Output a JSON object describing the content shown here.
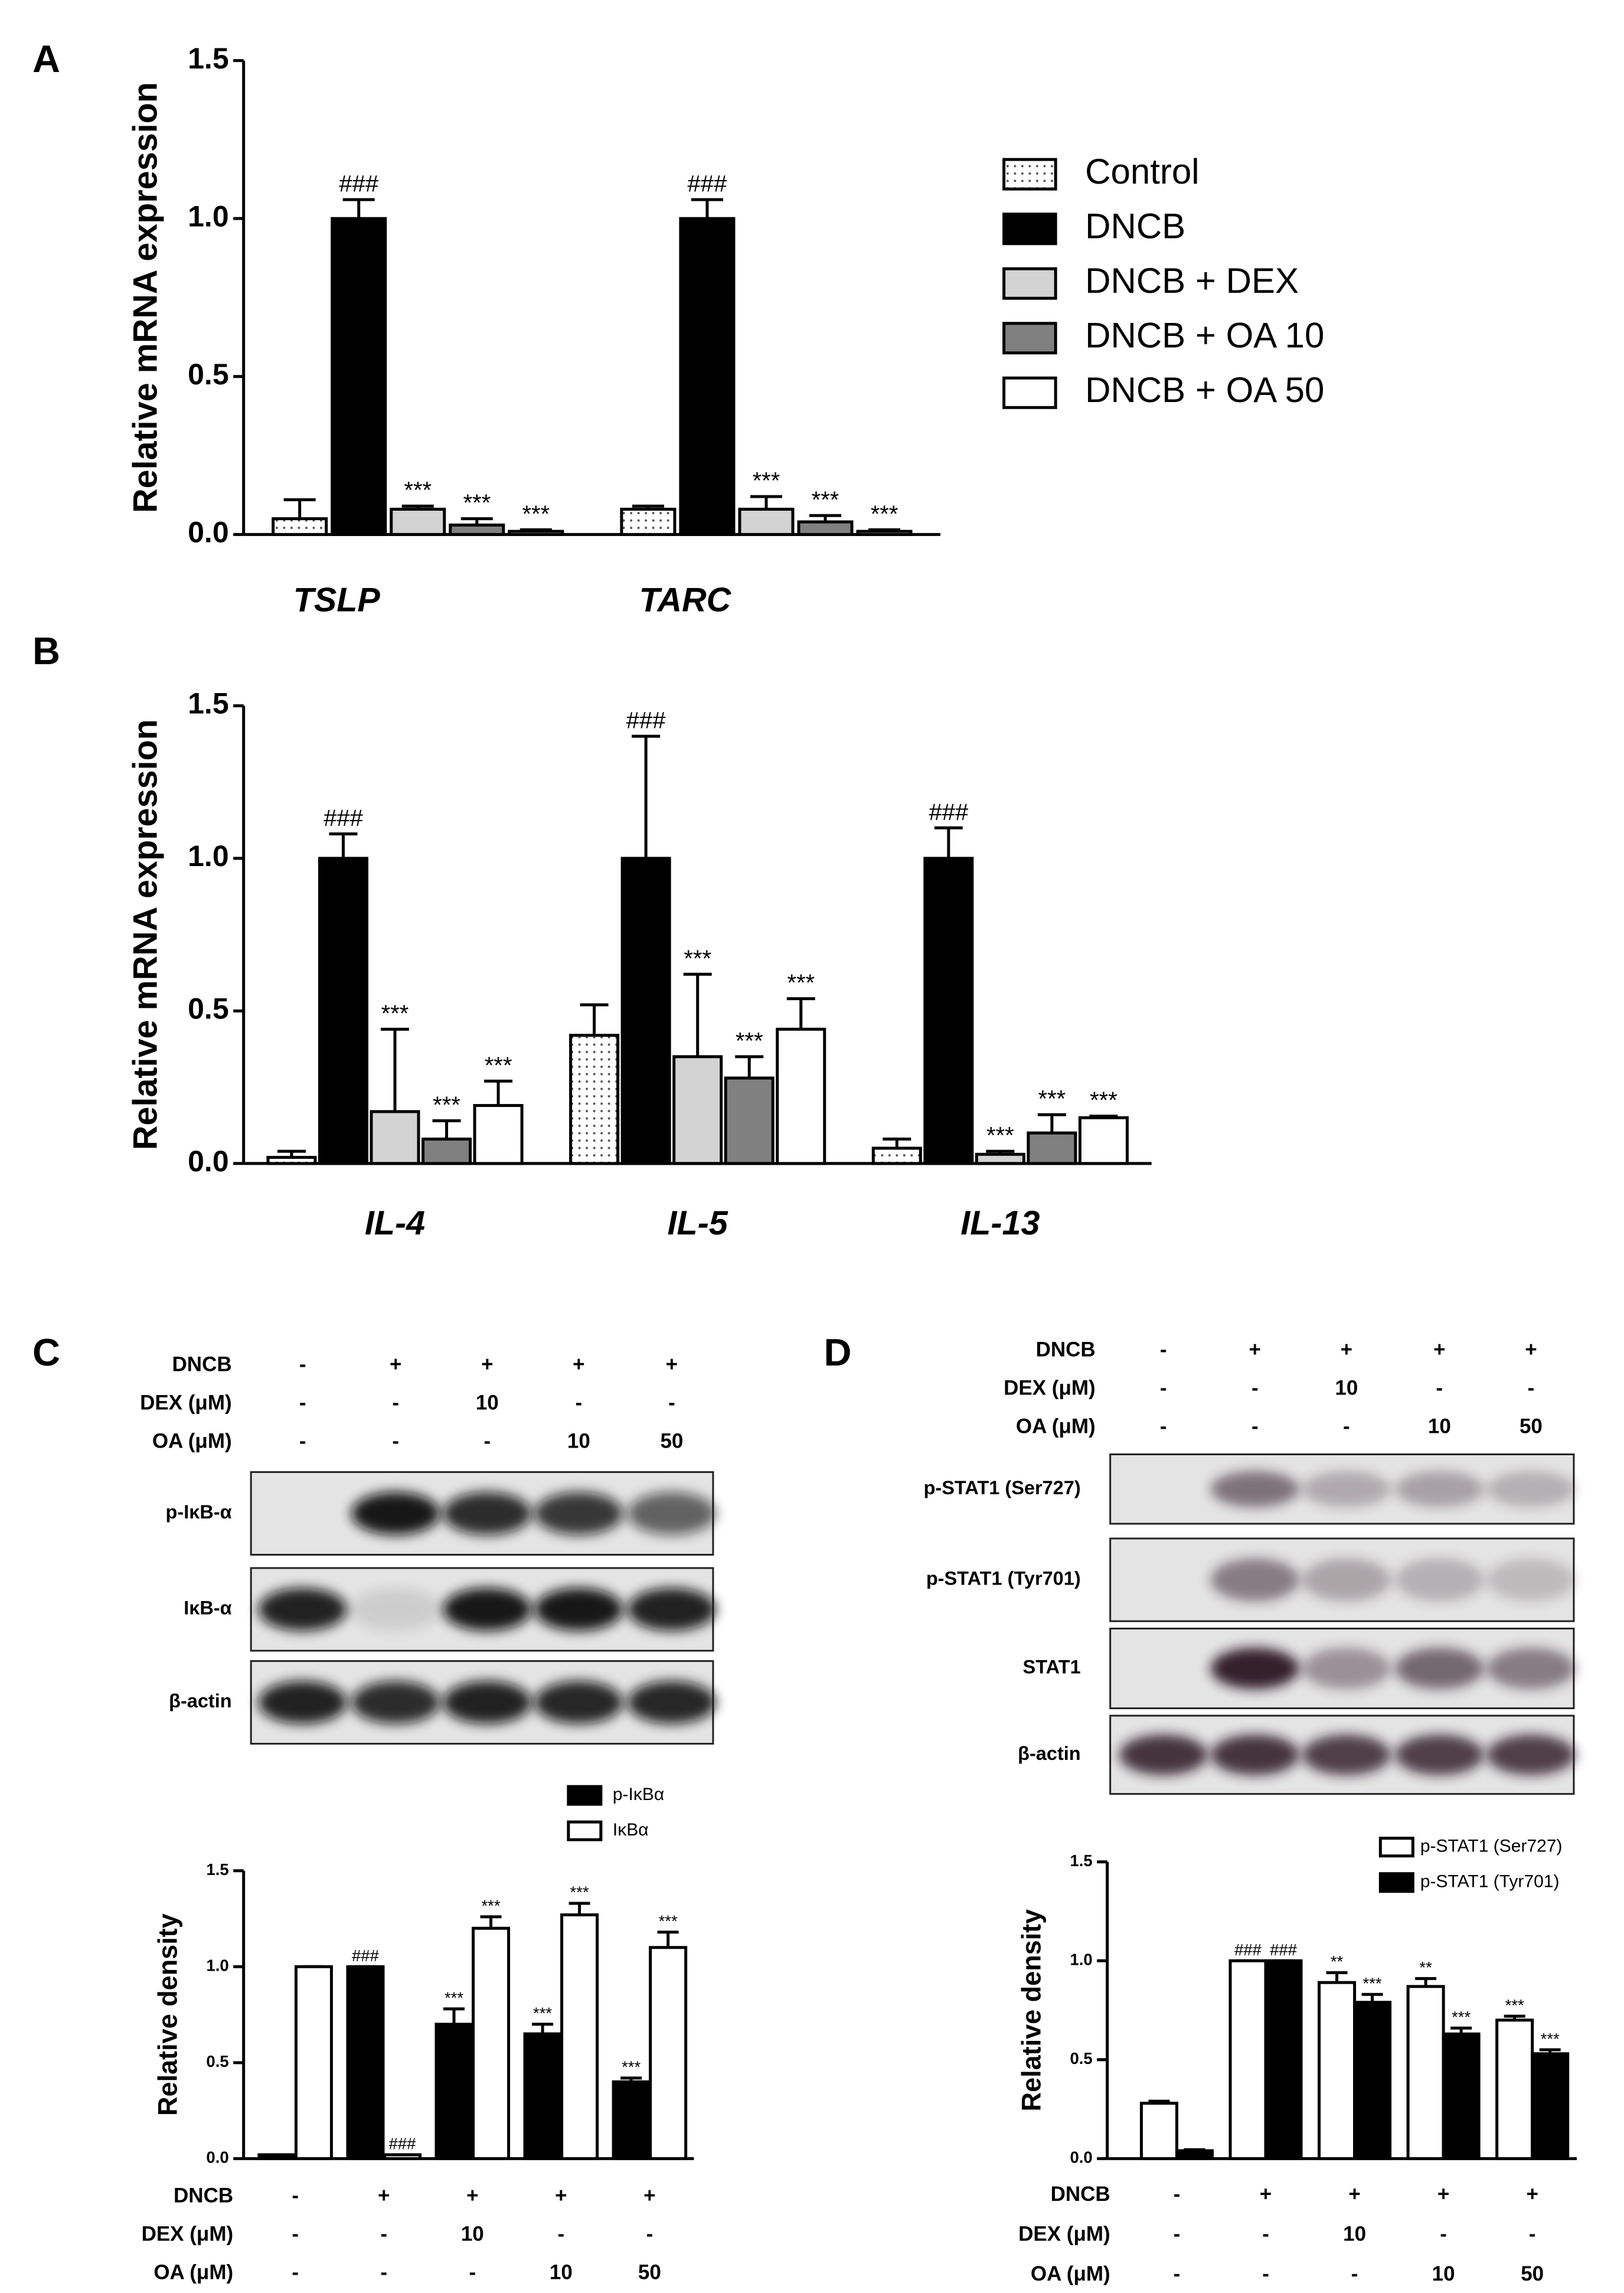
{
  "panel_labels": [
    "A",
    "B",
    "C",
    "D"
  ],
  "blots": [
    {
      "conditions": [
        {
          "name": "DNCB",
          "values": [
            "-",
            "+",
            "+",
            "+",
            "+"
          ]
        },
        {
          "name": "DEX (μM)",
          "values": [
            "-",
            "-",
            "10",
            "-",
            "-"
          ]
        },
        {
          "name": "OA (μM)",
          "values": [
            "-",
            "-",
            "-",
            "10",
            "50"
          ]
        }
      ],
      "rows": [
        "p-IκB-α",
        "IκB-α",
        "β-actin"
      ]
    },
    {
      "conditions": [
        {
          "name": "DNCB",
          "values": [
            "-",
            "+",
            "+",
            "+",
            "+"
          ]
        },
        {
          "name": "DEX (μM)",
          "values": [
            "-",
            "-",
            "10",
            "-",
            "-"
          ]
        },
        {
          "name": "OA (μM)",
          "values": [
            "-",
            "-",
            "-",
            "10",
            "50"
          ]
        }
      ],
      "rows": [
        "p-STAT1 (Ser727)",
        "p-STAT1 (Tyr701)",
        "STAT1",
        "β-actin"
      ]
    }
  ],
  "chart_data": [
    {
      "type": "bar",
      "ylabel": "Relative mRNA expression",
      "categories": [
        "TSLP",
        "TARC"
      ],
      "ylim": [
        0,
        1.5
      ],
      "yticks": [
        {
          "value": 0,
          "label": "0.0"
        },
        {
          "value": 0.5,
          "label": "0.5"
        },
        {
          "value": 1,
          "label": "1.0"
        },
        {
          "value": 1.5,
          "label": "1.5"
        }
      ],
      "series": [
        {
          "name": "Control",
          "color": "#ffffff",
          "pattern": "dots",
          "values": [
            0.05,
            0.08
          ],
          "errors": [
            0.06,
            0.01
          ],
          "annotations": [
            null,
            null
          ]
        },
        {
          "name": "DNCB",
          "color": "#000000",
          "values": [
            1.0,
            1.0
          ],
          "errors": [
            0.06,
            0.06
          ],
          "annotations": [
            "###",
            "###"
          ]
        },
        {
          "name": "DNCB + DEX",
          "color": "#d3d3d3",
          "values": [
            0.08,
            0.08
          ],
          "errors": [
            0.01,
            0.04
          ],
          "annotations": [
            "***",
            "***"
          ]
        },
        {
          "name": "DNCB + OA 10",
          "color": "#808080",
          "values": [
            0.03,
            0.04
          ],
          "errors": [
            0.02,
            0.02
          ],
          "annotations": [
            "***",
            "***"
          ]
        },
        {
          "name": "DNCB + OA 50",
          "color": "#ffffff",
          "values": [
            0.01,
            0.01
          ],
          "errors": [
            0.005,
            0.005
          ],
          "annotations": [
            "***",
            "***"
          ]
        }
      ]
    },
    {
      "type": "bar",
      "ylabel": "Relative mRNA expression",
      "categories": [
        "IL-4",
        "IL-5",
        "IL-13"
      ],
      "ylim": [
        0,
        1.5
      ],
      "yticks": [
        {
          "value": 0,
          "label": "0.0"
        },
        {
          "value": 0.5,
          "label": "0.5"
        },
        {
          "value": 1,
          "label": "1.0"
        },
        {
          "value": 1.5,
          "label": "1.5"
        }
      ],
      "series": [
        {
          "name": "Control",
          "color": "#ffffff",
          "pattern": "dots",
          "values": [
            0.02,
            0.42,
            0.05
          ],
          "errors": [
            0.02,
            0.1,
            0.03
          ],
          "annotations": [
            null,
            null,
            null
          ]
        },
        {
          "name": "DNCB",
          "color": "#000000",
          "values": [
            1.0,
            1.0,
            1.0
          ],
          "errors": [
            0.08,
            0.4,
            0.1
          ],
          "annotations": [
            "###",
            "###",
            "###"
          ]
        },
        {
          "name": "DNCB + DEX",
          "color": "#d3d3d3",
          "values": [
            0.17,
            0.35,
            0.03
          ],
          "errors": [
            0.27,
            0.27,
            0.01
          ],
          "annotations": [
            "***",
            "***",
            "***"
          ]
        },
        {
          "name": "DNCB + OA 10",
          "color": "#808080",
          "values": [
            0.08,
            0.28,
            0.1
          ],
          "errors": [
            0.06,
            0.07,
            0.06
          ],
          "annotations": [
            "***",
            "***",
            "***"
          ]
        },
        {
          "name": "DNCB + OA 50",
          "color": "#ffffff",
          "values": [
            0.19,
            0.44,
            0.15
          ],
          "errors": [
            0.08,
            0.1,
            0.005
          ],
          "annotations": [
            "***",
            "***",
            "***"
          ]
        }
      ]
    },
    {
      "type": "bar",
      "ylabel": "Relative density",
      "conditions": [
        {
          "name": "DNCB",
          "values": [
            "-",
            "+",
            "+",
            "+",
            "+"
          ]
        },
        {
          "name": "DEX (μM)",
          "values": [
            "-",
            "-",
            "10",
            "-",
            "-"
          ]
        },
        {
          "name": "OA (μM)",
          "values": [
            "-",
            "-",
            "-",
            "10",
            "50"
          ]
        }
      ],
      "ylim": [
        0,
        1.5
      ],
      "yticks": [
        {
          "value": 0,
          "label": "0.0"
        },
        {
          "value": 0.5,
          "label": "0.5"
        },
        {
          "value": 1,
          "label": "1.0"
        },
        {
          "value": 1.5,
          "label": "1.5"
        }
      ],
      "series": [
        {
          "name": "p-IκBα",
          "color": "#000000",
          "values": [
            0.02,
            1.0,
            0.7,
            0.65,
            0.4
          ],
          "errors": [
            0,
            0,
            0.08,
            0.05,
            0.02
          ],
          "annotations": [
            null,
            "###",
            "***",
            "***",
            "***"
          ]
        },
        {
          "name": "IκBα",
          "color": "#ffffff",
          "values": [
            1.0,
            0.02,
            1.2,
            1.27,
            1.1
          ],
          "errors": [
            0,
            0,
            0.06,
            0.06,
            0.08
          ],
          "annotations": [
            null,
            "###",
            "***",
            "***",
            "***"
          ]
        }
      ]
    },
    {
      "type": "bar",
      "ylabel": "Relative density",
      "conditions": [
        {
          "name": "DNCB",
          "values": [
            "-",
            "+",
            "+",
            "+",
            "+"
          ]
        },
        {
          "name": "DEX (μM)",
          "values": [
            "-",
            "-",
            "10",
            "-",
            "-"
          ]
        },
        {
          "name": "OA (μM)",
          "values": [
            "-",
            "-",
            "-",
            "10",
            "50"
          ]
        }
      ],
      "ylim": [
        0,
        1.5
      ],
      "yticks": [
        {
          "value": 0,
          "label": "0.0"
        },
        {
          "value": 0.5,
          "label": "0.5"
        },
        {
          "value": 1,
          "label": "1.0"
        },
        {
          "value": 1.5,
          "label": "1.5"
        }
      ],
      "series": [
        {
          "name": "p-STAT1 (Ser727)",
          "color": "#ffffff",
          "values": [
            0.28,
            1.0,
            0.89,
            0.87,
            0.7
          ],
          "errors": [
            0.01,
            0,
            0.05,
            0.04,
            0.02
          ],
          "annotations": [
            null,
            "###",
            "**",
            "**",
            "***"
          ]
        },
        {
          "name": "p-STAT1 (Tyr701)",
          "color": "#000000",
          "values": [
            0.04,
            1.0,
            0.79,
            0.63,
            0.53
          ],
          "errors": [
            0.005,
            0,
            0.04,
            0.03,
            0.02
          ],
          "annotations": [
            null,
            "###",
            "***",
            "***",
            "***"
          ]
        }
      ]
    }
  ]
}
